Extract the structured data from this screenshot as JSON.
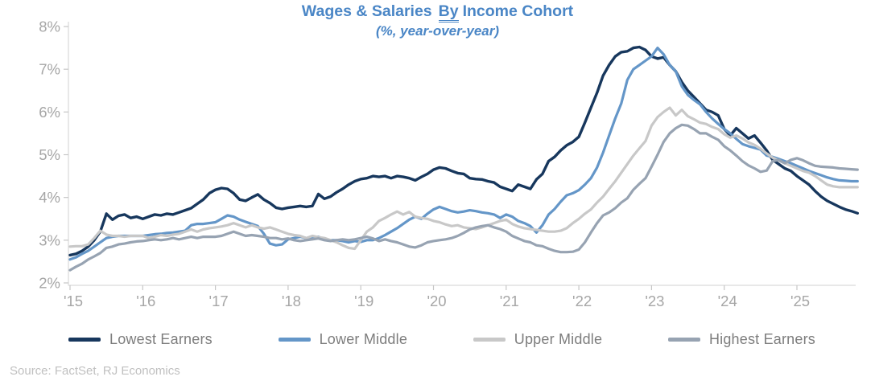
{
  "title": {
    "part1": "Wages & Salaries",
    "underlined_word": "By",
    "part2": "Income Cohort",
    "subtitle": "(%, year-over-year)",
    "color": "#4a86c6"
  },
  "source_note": "Source: FactSet, RJ Economics",
  "legend": {
    "items": [
      {
        "label": "Lowest Earners",
        "color": "#17375d"
      },
      {
        "label": "Lower Middle",
        "color": "#6496c8"
      },
      {
        "label": "Upper Middle",
        "color": "#c8c8c8"
      },
      {
        "label": "Highest Earners",
        "color": "#97a3b2"
      }
    ]
  },
  "chart_data": {
    "type": "line",
    "title": "Wages & Salaries By Income Cohort",
    "subtitle": "(%, year-over-year)",
    "unit": "percent, year-over-year",
    "x_start": "2015-01",
    "frequency": "monthly",
    "x_tick_labels": [
      "'15",
      "'16",
      "'17",
      "'18",
      "'19",
      "'20",
      "'21",
      "'22",
      "'23",
      "'24",
      "'25"
    ],
    "ylim": [
      2,
      8
    ],
    "y_tick_labels": [
      "2%",
      "3%",
      "4%",
      "5%",
      "6%",
      "7%",
      "8%"
    ],
    "grid": false,
    "legend_position": "bottom",
    "axis_color": "#d9d9d9",
    "tick_color": "#c6c6c6",
    "series": [
      {
        "name": "Lowest Earners",
        "color": "#17375d",
        "stroke_width": 3.4,
        "values": [
          2.65,
          2.68,
          2.75,
          2.85,
          3.0,
          3.2,
          3.62,
          3.48,
          3.57,
          3.6,
          3.52,
          3.55,
          3.5,
          3.55,
          3.6,
          3.58,
          3.62,
          3.6,
          3.65,
          3.7,
          3.75,
          3.85,
          3.95,
          4.1,
          4.18,
          4.22,
          4.2,
          4.1,
          3.95,
          3.92,
          4.0,
          4.07,
          3.95,
          3.87,
          3.76,
          3.73,
          3.76,
          3.78,
          3.8,
          3.78,
          3.8,
          4.08,
          3.97,
          4.02,
          4.12,
          4.2,
          4.3,
          4.38,
          4.43,
          4.45,
          4.5,
          4.48,
          4.5,
          4.45,
          4.5,
          4.48,
          4.45,
          4.4,
          4.48,
          4.55,
          4.65,
          4.7,
          4.68,
          4.62,
          4.57,
          4.55,
          4.45,
          4.43,
          4.42,
          4.38,
          4.35,
          4.25,
          4.2,
          4.15,
          4.3,
          4.25,
          4.2,
          4.42,
          4.55,
          4.85,
          4.95,
          5.1,
          5.22,
          5.3,
          5.42,
          5.75,
          6.1,
          6.45,
          6.85,
          7.1,
          7.3,
          7.4,
          7.42,
          7.5,
          7.52,
          7.45,
          7.3,
          7.25,
          7.28,
          7.1,
          6.95,
          6.7,
          6.5,
          6.35,
          6.2,
          6.05,
          6.0,
          5.92,
          5.6,
          5.45,
          5.62,
          5.5,
          5.38,
          5.45,
          5.28,
          5.1,
          4.88,
          4.78,
          4.68,
          4.62,
          4.5,
          4.4,
          4.3,
          4.15,
          4.02,
          3.92,
          3.85,
          3.78,
          3.72,
          3.68,
          3.63
        ]
      },
      {
        "name": "Lower Middle",
        "color": "#6496c8",
        "stroke_width": 3.2,
        "values": [
          2.55,
          2.6,
          2.68,
          2.75,
          2.85,
          2.95,
          3.05,
          3.08,
          3.1,
          3.1,
          3.1,
          3.1,
          3.1,
          3.12,
          3.14,
          3.15,
          3.17,
          3.18,
          3.2,
          3.22,
          3.35,
          3.38,
          3.38,
          3.4,
          3.42,
          3.5,
          3.58,
          3.55,
          3.48,
          3.43,
          3.38,
          3.33,
          3.15,
          2.92,
          2.88,
          2.9,
          3.02,
          3.05,
          3.08,
          3.05,
          3.07,
          3.08,
          3.02,
          3.0,
          3.0,
          2.98,
          2.95,
          2.98,
          2.96,
          3.0,
          3.0,
          3.05,
          3.12,
          3.2,
          3.28,
          3.38,
          3.48,
          3.55,
          3.5,
          3.62,
          3.72,
          3.78,
          3.73,
          3.68,
          3.65,
          3.67,
          3.7,
          3.68,
          3.65,
          3.63,
          3.6,
          3.52,
          3.6,
          3.55,
          3.45,
          3.4,
          3.33,
          3.18,
          3.35,
          3.6,
          3.73,
          3.9,
          4.05,
          4.1,
          4.17,
          4.3,
          4.45,
          4.7,
          5.05,
          5.45,
          5.85,
          6.2,
          6.75,
          7.0,
          7.1,
          7.2,
          7.3,
          7.5,
          7.35,
          7.1,
          6.95,
          6.6,
          6.4,
          6.28,
          6.18,
          6.0,
          5.85,
          5.72,
          5.6,
          5.5,
          5.37,
          5.25,
          5.2,
          5.16,
          5.12,
          4.98,
          4.95,
          4.9,
          4.85,
          4.8,
          4.74,
          4.68,
          4.62,
          4.57,
          4.52,
          4.47,
          4.43,
          4.4,
          4.39,
          4.38,
          4.38
        ]
      },
      {
        "name": "Upper Middle",
        "color": "#c8c8c8",
        "stroke_width": 3.2,
        "values": [
          2.85,
          2.86,
          2.86,
          2.9,
          3.05,
          3.22,
          3.13,
          3.1,
          3.1,
          3.08,
          3.1,
          3.1,
          3.1,
          3.05,
          3.08,
          3.12,
          3.1,
          3.13,
          3.15,
          3.2,
          3.25,
          3.2,
          3.25,
          3.28,
          3.3,
          3.32,
          3.35,
          3.4,
          3.35,
          3.3,
          3.35,
          3.3,
          3.27,
          3.3,
          3.25,
          3.2,
          3.15,
          3.12,
          3.1,
          3.05,
          3.1,
          3.07,
          3.05,
          3.0,
          2.95,
          2.88,
          2.82,
          2.8,
          3.0,
          3.2,
          3.3,
          3.45,
          3.52,
          3.6,
          3.67,
          3.6,
          3.66,
          3.55,
          3.52,
          3.5,
          3.45,
          3.42,
          3.37,
          3.33,
          3.35,
          3.3,
          3.28,
          3.26,
          3.3,
          3.35,
          3.4,
          3.45,
          3.48,
          3.38,
          3.32,
          3.28,
          3.26,
          3.24,
          3.22,
          3.2,
          3.2,
          3.22,
          3.28,
          3.4,
          3.5,
          3.62,
          3.72,
          3.88,
          4.02,
          4.2,
          4.38,
          4.58,
          4.78,
          4.98,
          5.15,
          5.32,
          5.68,
          5.88,
          6.0,
          6.1,
          5.92,
          6.05,
          5.9,
          5.83,
          5.75,
          5.72,
          5.65,
          5.6,
          5.48,
          5.4,
          5.45,
          5.38,
          5.29,
          5.23,
          5.14,
          5.03,
          4.93,
          4.86,
          4.8,
          4.74,
          4.68,
          4.62,
          4.58,
          4.5,
          4.4,
          4.3,
          4.26,
          4.24,
          4.24,
          4.24,
          4.24
        ]
      },
      {
        "name": "Highest Earners",
        "color": "#97a3b2",
        "stroke_width": 3.2,
        "values": [
          2.3,
          2.38,
          2.45,
          2.55,
          2.62,
          2.7,
          2.82,
          2.85,
          2.9,
          2.92,
          2.95,
          2.97,
          2.98,
          3.0,
          3.02,
          3.0,
          3.02,
          3.05,
          3.02,
          3.05,
          3.08,
          3.05,
          3.08,
          3.08,
          3.08,
          3.1,
          3.15,
          3.2,
          3.15,
          3.1,
          3.12,
          3.1,
          3.08,
          3.05,
          3.05,
          3.02,
          3.04,
          3.0,
          2.98,
          3.0,
          3.02,
          3.04,
          3.0,
          2.98,
          3.0,
          3.02,
          3.0,
          3.02,
          3.05,
          3.08,
          3.04,
          2.98,
          3.02,
          2.98,
          2.95,
          2.9,
          2.85,
          2.83,
          2.88,
          2.95,
          2.98,
          3.0,
          3.02,
          3.05,
          3.1,
          3.17,
          3.25,
          3.3,
          3.33,
          3.35,
          3.3,
          3.26,
          3.2,
          3.1,
          3.04,
          2.98,
          2.95,
          2.88,
          2.86,
          2.8,
          2.75,
          2.72,
          2.72,
          2.73,
          2.78,
          2.95,
          3.18,
          3.4,
          3.58,
          3.65,
          3.75,
          3.88,
          3.98,
          4.18,
          4.32,
          4.45,
          4.72,
          5.0,
          5.3,
          5.5,
          5.62,
          5.7,
          5.68,
          5.6,
          5.5,
          5.5,
          5.42,
          5.35,
          5.2,
          5.1,
          4.98,
          4.85,
          4.75,
          4.68,
          4.6,
          4.63,
          4.85,
          4.88,
          4.8,
          4.88,
          4.92,
          4.87,
          4.8,
          4.74,
          4.72,
          4.71,
          4.7,
          4.68,
          4.67,
          4.66,
          4.65
        ]
      }
    ]
  }
}
